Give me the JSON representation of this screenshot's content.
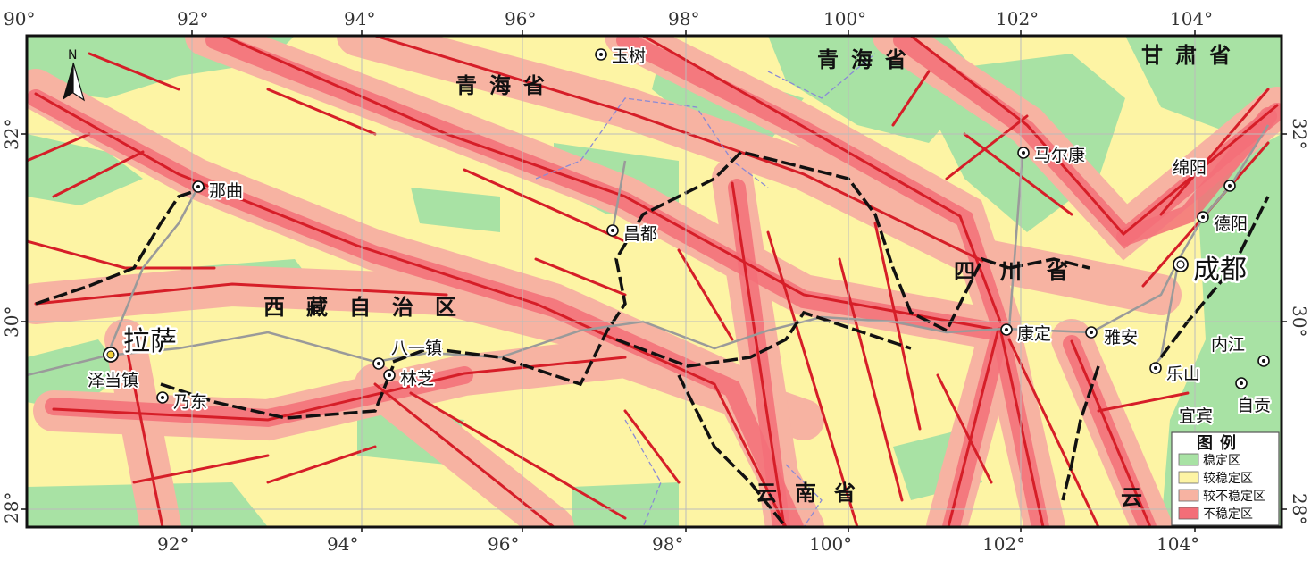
{
  "map": {
    "longitude_labels": [
      "90°",
      "92°",
      "94°",
      "96°",
      "98°",
      "100°",
      "102°",
      "104°"
    ],
    "latitude_labels": [
      "32°",
      "30°",
      "28°"
    ],
    "north_arrow": "N",
    "provinces": {
      "qinghai_west": "青海省",
      "qinghai_east": "青海省",
      "gansu": "甘肃省",
      "xizang": "西藏自治区",
      "sichuan": "四川省",
      "yunnan": "云南省",
      "yunnan_east": "云"
    },
    "cities": {
      "yushu": "玉树",
      "maerkang": "马尔康",
      "mianyang": "绵阳",
      "deyang": "德阳",
      "chengdu": "成都",
      "naqu": "那曲",
      "changdu": "昌都",
      "lasa": "拉萨",
      "zedang": "泽当镇",
      "naidong": "乃东",
      "bayi": "八一镇",
      "linzhi": "林芝",
      "kangding": "康定",
      "yaan": "雅安",
      "leshan": "乐山",
      "neijiang": "内江",
      "zigong": "自贡",
      "yibin": "宜宾"
    }
  },
  "legend": {
    "title": "图例",
    "items": [
      {
        "label": "稳定区",
        "color": "#a8e2a4"
      },
      {
        "label": "较稳定区",
        "color": "#fdf4a4"
      },
      {
        "label": "较不稳定区",
        "color": "#f7b3a2"
      },
      {
        "label": "不稳定区",
        "color": "#f36e78"
      }
    ]
  },
  "colors": {
    "fault": "#d61e28",
    "province_boundary": "#111111",
    "road": "#9a9a9a",
    "county_boundary": "#8a8ad6"
  }
}
